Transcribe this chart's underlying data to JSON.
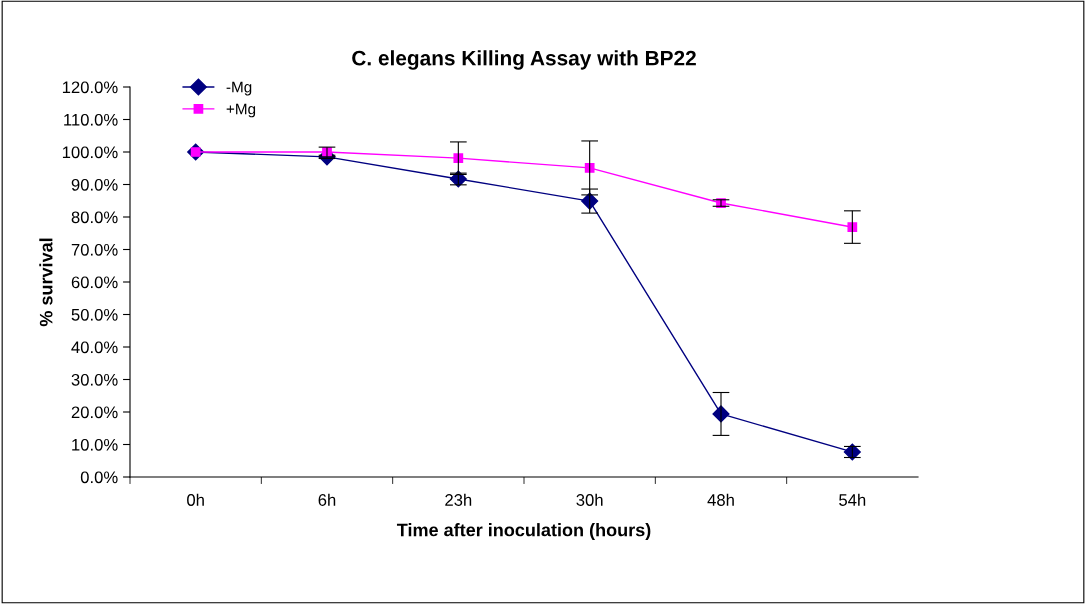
{
  "chart_data": {
    "type": "line",
    "title": "C. elegans Killing Assay with BP22",
    "xlabel": "Time after inoculation (hours)",
    "ylabel": "% survival",
    "categories": [
      "0h",
      "6h",
      "23h",
      "30h",
      "48h",
      "54h"
    ],
    "series": [
      {
        "name": "-Mg",
        "color": "#000080",
        "marker": "diamond",
        "values": [
          100,
          98.5,
          91.7,
          84.9,
          19.4,
          7.7
        ],
        "errors": [
          null,
          0.5,
          1.8,
          3.7,
          6.6,
          1.7
        ]
      },
      {
        "name": "+Mg",
        "color": "#ff00ff",
        "marker": "square",
        "values": [
          100,
          100,
          98.1,
          95.1,
          84.3,
          76.9
        ],
        "errors": [
          null,
          1.5,
          5,
          8.3,
          1,
          5
        ]
      }
    ],
    "ylim": [
      0,
      120
    ],
    "yticks": [
      {
        "value": 0,
        "label": "0.0%"
      },
      {
        "value": 10,
        "label": "10.0%"
      },
      {
        "value": 20,
        "label": "20.0%"
      },
      {
        "value": 30,
        "label": "30.0%"
      },
      {
        "value": 40,
        "label": "40.0%"
      },
      {
        "value": 50,
        "label": "50.0%"
      },
      {
        "value": 60,
        "label": "60.0%"
      },
      {
        "value": 70,
        "label": "70.0%"
      },
      {
        "value": 80,
        "label": "80.0%"
      },
      {
        "value": 90,
        "label": "90.0%"
      },
      {
        "value": 100,
        "label": "100.0%"
      },
      {
        "value": 110,
        "label": "110.0%"
      },
      {
        "value": 120,
        "label": "120.0%"
      }
    ],
    "grid": false,
    "legend": "top left",
    "line_style": "solid"
  }
}
